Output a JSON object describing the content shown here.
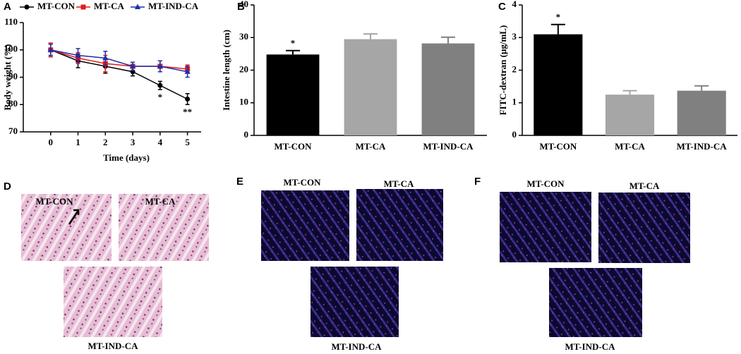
{
  "chart_data": [
    {
      "type": "line",
      "panel": "A",
      "xlabel": "Time (days)",
      "ylabel": "Body weight (%)",
      "x": [
        0,
        1,
        2,
        3,
        4,
        5
      ],
      "xlim": [
        -1,
        5.5
      ],
      "xticks": [
        0,
        1,
        2,
        3,
        4,
        5
      ],
      "ylim": [
        70,
        110
      ],
      "yticks": [
        70,
        80,
        90,
        100,
        110
      ],
      "series": [
        {
          "name": "MT-CON",
          "color": "#000000",
          "marker": "circle",
          "values": [
            100,
            96,
            94,
            92,
            87,
            82
          ],
          "errors": [
            2.5,
            2.5,
            2.5,
            1.5,
            1.5,
            2
          ]
        },
        {
          "name": "MT-CA",
          "color": "#e41a1c",
          "marker": "square",
          "values": [
            100,
            97,
            95,
            94,
            94,
            93
          ],
          "errors": [
            2.5,
            2,
            3,
            1.5,
            2,
            1.5
          ]
        },
        {
          "name": "MT-IND-CA",
          "color": "#1f2ea8",
          "marker": "triangle",
          "values": [
            100,
            98,
            97,
            94,
            94,
            92
          ],
          "errors": [
            2,
            2.5,
            2.5,
            1.5,
            2,
            2
          ]
        }
      ],
      "annotations": [
        {
          "text": "*",
          "x": 4
        },
        {
          "text": "**",
          "x": 5
        }
      ]
    },
    {
      "type": "bar",
      "panel": "B",
      "ylabel": "Intestine length (cm)",
      "categories": [
        "MT-CON",
        "MT-CA",
        "MT-IND-CA"
      ],
      "values": [
        24.8,
        29.5,
        28.2
      ],
      "errors": [
        1.2,
        1.6,
        1.9
      ],
      "colors": [
        "#000000",
        "#a6a6a6",
        "#808080"
      ],
      "ylim": [
        0,
        40
      ],
      "yticks": [
        0,
        10,
        20,
        30,
        40
      ],
      "annotations": [
        {
          "text": "*",
          "category": "MT-CON"
        }
      ]
    },
    {
      "type": "bar",
      "panel": "C",
      "ylabel": "FITC-dextran (μg/mL)",
      "categories": [
        "MT-CON",
        "MT-CA",
        "MT-IND-CA"
      ],
      "values": [
        3.1,
        1.25,
        1.37
      ],
      "errors": [
        0.3,
        0.12,
        0.15
      ],
      "colors": [
        "#000000",
        "#a6a6a6",
        "#808080"
      ],
      "ylim": [
        0,
        4
      ],
      "yticks": [
        0,
        1,
        2,
        3,
        4
      ],
      "annotations": [
        {
          "text": "*",
          "category": "MT-CON"
        }
      ]
    }
  ],
  "images": [
    {
      "panel": "D",
      "labels": [
        "MT-CON",
        "MT-CA",
        "MT-IND-CA"
      ]
    },
    {
      "panel": "E",
      "labels": [
        "MT-CON",
        "MT-CA",
        "MT-IND-CA"
      ]
    },
    {
      "panel": "F",
      "labels": [
        "MT-CON",
        "MT-CA",
        "MT-IND-CA"
      ]
    }
  ]
}
